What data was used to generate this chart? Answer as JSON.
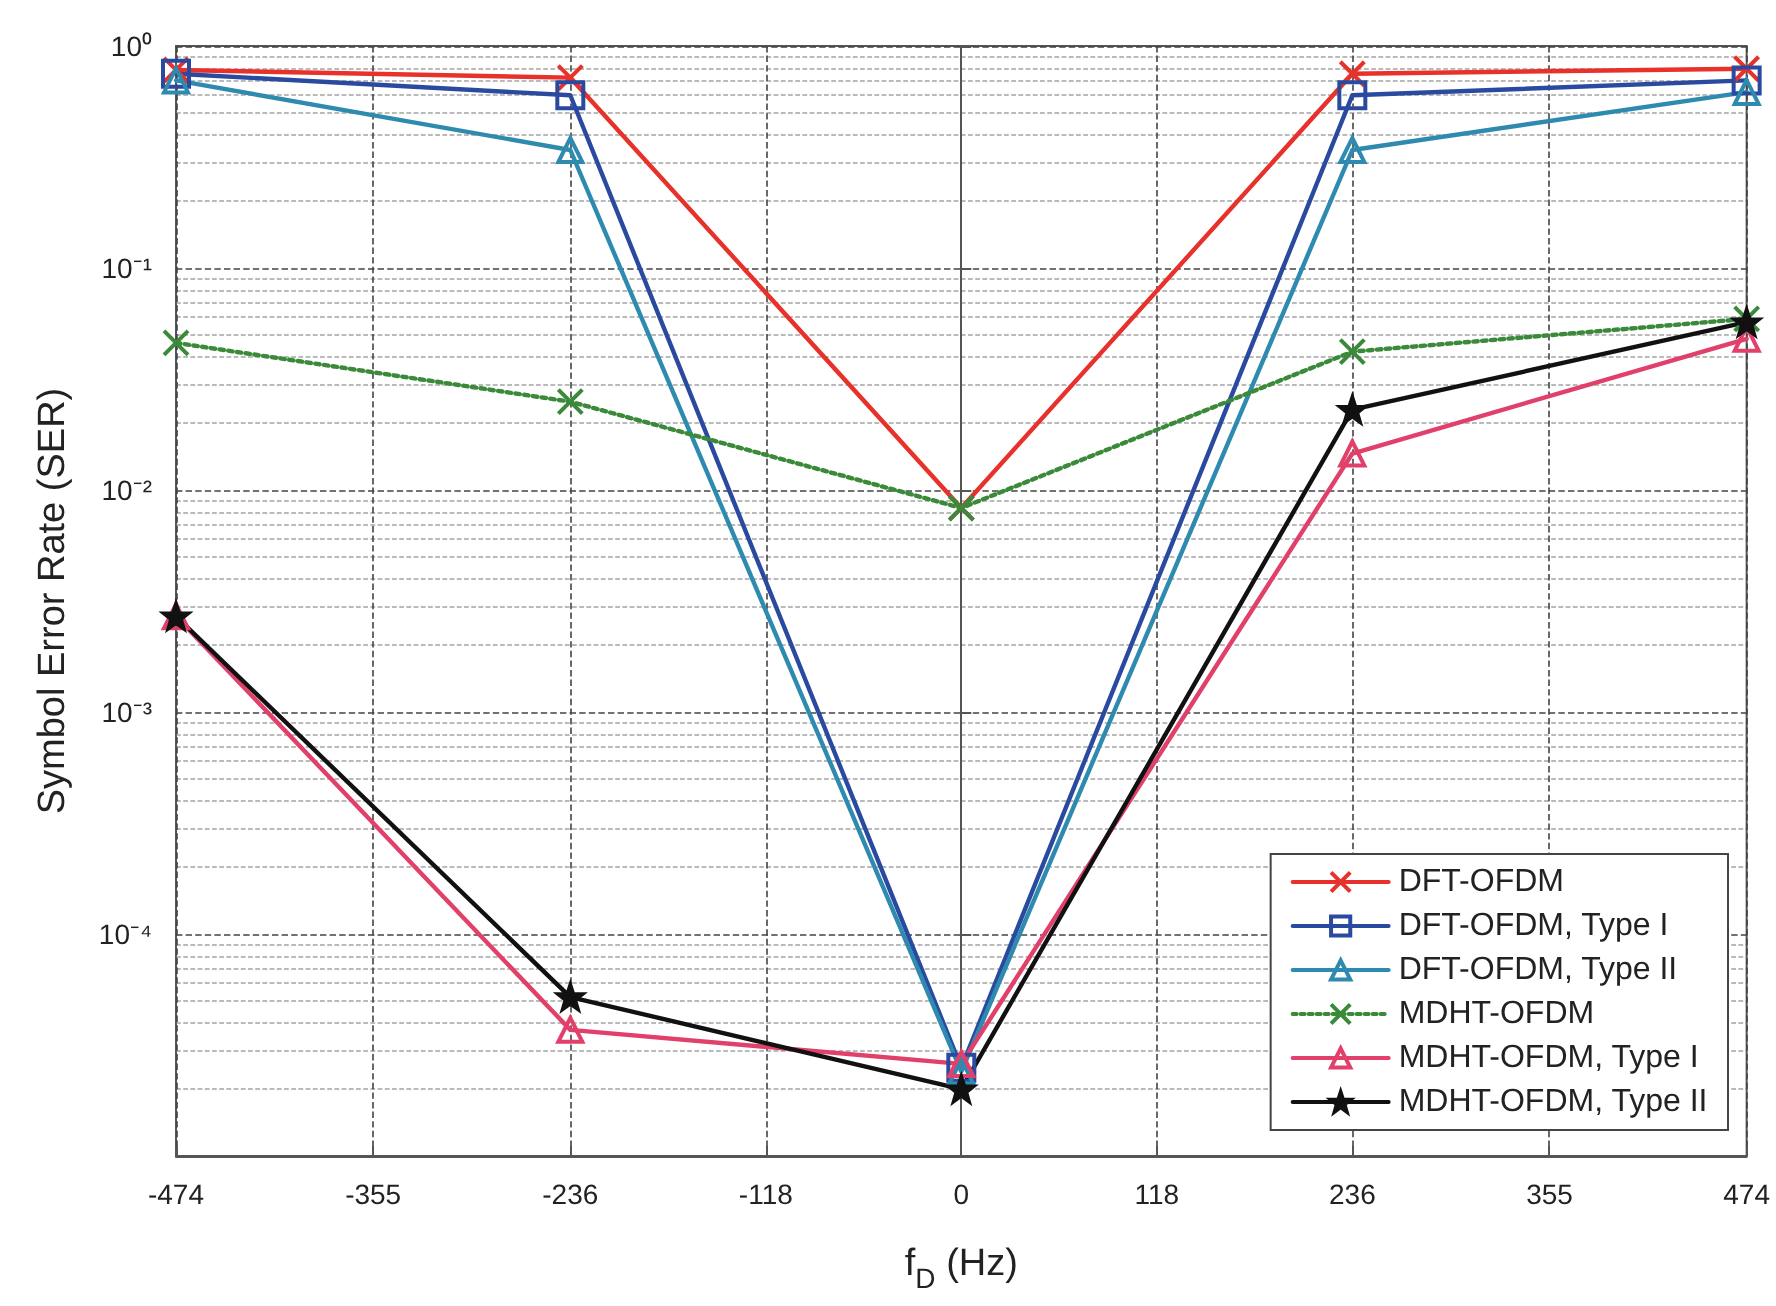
{
  "chart_data": {
    "type": "line",
    "xlabel": "f$_{D}$ (Hz)",
    "ylabel": "Symbol Error Rate (SER)",
    "x": [
      -474,
      -236,
      0,
      236,
      474
    ],
    "series": [
      {
        "name": "DFT-OFDM",
        "color": "#e8312a",
        "marker": "cross",
        "values": [
          0.78,
          0.72,
          0.0083,
          0.75,
          0.79
        ]
      },
      {
        "name": "DFT-OFDM, Type I",
        "color": "#2a4aa0",
        "marker": "square",
        "values": [
          0.75,
          0.6,
          2.5e-05,
          0.6,
          0.7
        ]
      },
      {
        "name": "DFT-OFDM, Type II",
        "color": "#2f8ab0",
        "marker": "triangle",
        "values": [
          0.7,
          0.34,
          2.4e-05,
          0.34,
          0.62
        ]
      },
      {
        "name": "MDHT-OFDM",
        "color": "#3a8a3a",
        "marker": "cross",
        "line_style": "dotted",
        "values": [
          0.046,
          0.025,
          0.0083,
          0.042,
          0.059
        ]
      },
      {
        "name": "MDHT-OFDM, Type I",
        "color": "#e0406a",
        "marker": "triangle",
        "values": [
          0.0027,
          3.7e-05,
          2.6e-05,
          0.0146,
          0.048
        ]
      },
      {
        "name": "MDHT-OFDM, Type II",
        "color": "#111111",
        "marker": "star",
        "values": [
          0.0027,
          5.2e-05,
          2e-05,
          0.023,
          0.057
        ]
      }
    ],
    "xlim": [
      -474,
      474
    ],
    "xticks": [
      -474,
      -355,
      -236,
      -118,
      0,
      118,
      236,
      355,
      474
    ],
    "log": "y",
    "ylim": [
      1e-05,
      1
    ],
    "yticks": [
      {
        "value": 1e-05,
        "label": null
      },
      {
        "value": 0.0001,
        "label": "10⁻⁴"
      },
      {
        "value": 0.001,
        "label": "10⁻³"
      },
      {
        "value": 0.01,
        "label": "10⁻²"
      },
      {
        "value": 0.1,
        "label": "10⁻¹"
      },
      {
        "value": 1,
        "label": "10⁰"
      }
    ],
    "grid": true,
    "legend": "bottom right",
    "line_style": "solid"
  }
}
